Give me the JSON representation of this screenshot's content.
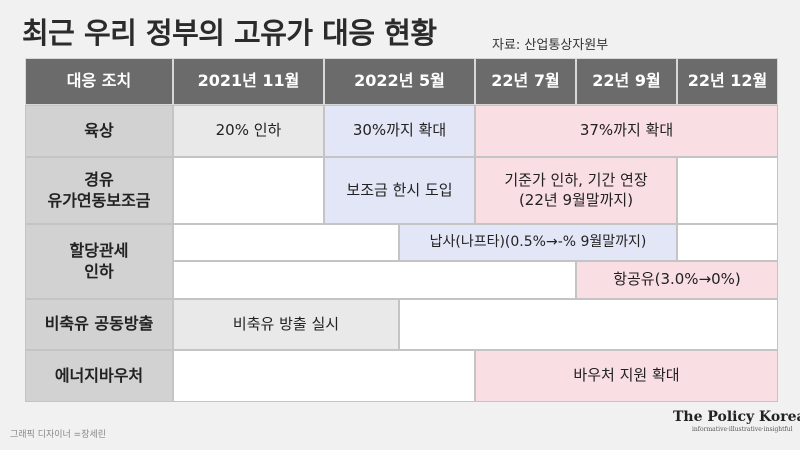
{
  "title": "최근 우리 정부의 고유가 대응 현황",
  "source": "자료: 산업통상자원부",
  "table": {
    "header": {
      "measure": "대응 조치",
      "nov2021": "2021년 11월",
      "may2022": "2022년 5월",
      "jul22": "22년 7월",
      "sep22": "22년 9월",
      "dec22": "22년 12월"
    },
    "rows": {
      "yuksang": {
        "label": "육상",
        "c1": "20% 인하",
        "c2": "30%까지 확대",
        "c3": "37%까지 확대"
      },
      "diesel": {
        "label": "경유\n유가연동보조금",
        "c1": "보조금 한시 도입",
        "c2": "기준가 인하, 기간 연장\n(22년 9월말까지)"
      },
      "tariff": {
        "label": "할당관세\n인하",
        "naphtha": "납사(나프타)(0.5%→-% 9월말까지)",
        "jetfuel": "항공유(3.0%→0%)"
      },
      "reserve": {
        "label": "비축유 공동방출",
        "c1": "비축유 방출 실시"
      },
      "voucher": {
        "label": "에너지바우처",
        "c1": "바우처 지원 확대"
      }
    }
  },
  "footer": {
    "credit": "그래픽 디자이너 =장세린",
    "brand": "The Policy Korea",
    "tagline": "informative·illustrative·insightful"
  }
}
